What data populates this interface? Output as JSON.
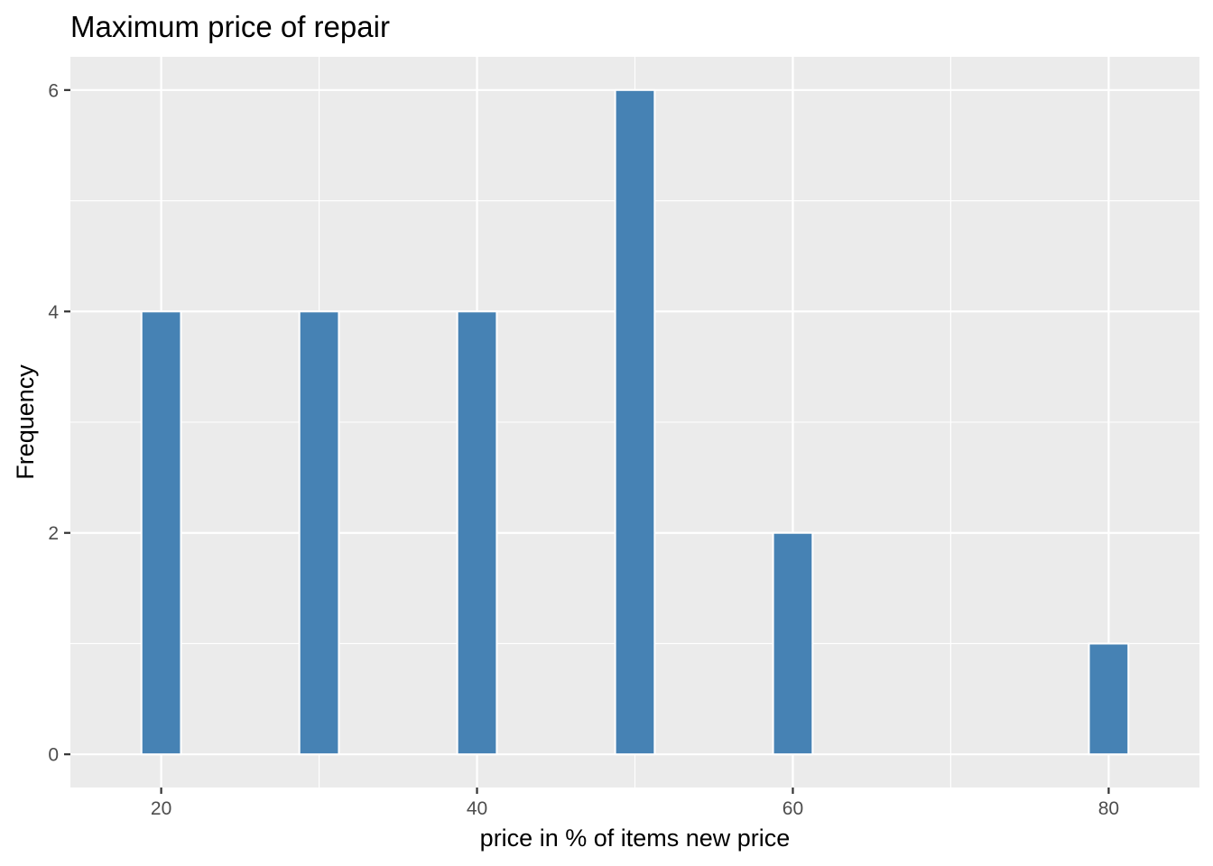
{
  "chart_data": {
    "type": "bar",
    "title": "Maximum price of repair",
    "xlabel": "price in % of items new price",
    "ylabel": "Frequency",
    "x": [
      20,
      30,
      40,
      50,
      60,
      80
    ],
    "values": [
      4,
      4,
      4,
      6,
      2,
      1
    ],
    "bin_width": 5,
    "xlim": [
      14.25,
      85.75
    ],
    "ylim": [
      -0.3,
      6.3
    ],
    "x_ticks": [
      20,
      40,
      60,
      80
    ],
    "x_minor_ticks": [
      30,
      50,
      70
    ],
    "y_ticks": [
      0,
      2,
      4,
      6
    ],
    "y_minor_ticks": [
      1,
      3,
      5
    ],
    "grid": true,
    "colors": {
      "bar_fill": "#4682b4",
      "bar_outline": "#ffffff",
      "panel": "#ebebeb",
      "grid": "#ffffff"
    }
  }
}
